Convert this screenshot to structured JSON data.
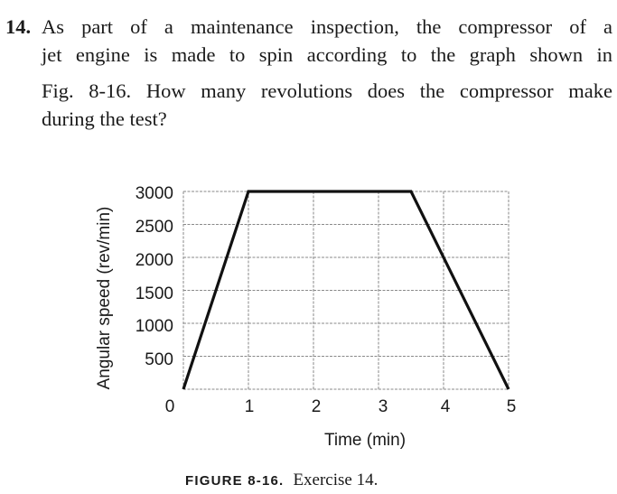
{
  "problem": {
    "number": "14.",
    "lines": [
      "As part of a maintenance inspection, the compressor of a",
      "jet engine is made to spin according to the graph shown in",
      "Fig. 8-16. How many revolutions does the compressor make",
      "during the test?"
    ]
  },
  "figure": {
    "caption_label": "FIGURE 8-16.",
    "caption_text": "Exercise 14."
  },
  "chart_data": {
    "type": "line",
    "title": "",
    "xlabel": "Time (min)",
    "ylabel": "Angular speed (rev/min)",
    "x_ticks": [
      "0",
      "1",
      "2",
      "3",
      "4",
      "5"
    ],
    "y_ticks": [
      "500",
      "1000",
      "1500",
      "2000",
      "2500",
      "3000"
    ],
    "xlim": [
      0,
      5
    ],
    "ylim": [
      0,
      3000
    ],
    "grid": true,
    "series": [
      {
        "name": "Angular speed",
        "x": [
          0,
          1,
          3.5,
          5
        ],
        "y": [
          0,
          3000,
          3000,
          0
        ]
      }
    ]
  }
}
